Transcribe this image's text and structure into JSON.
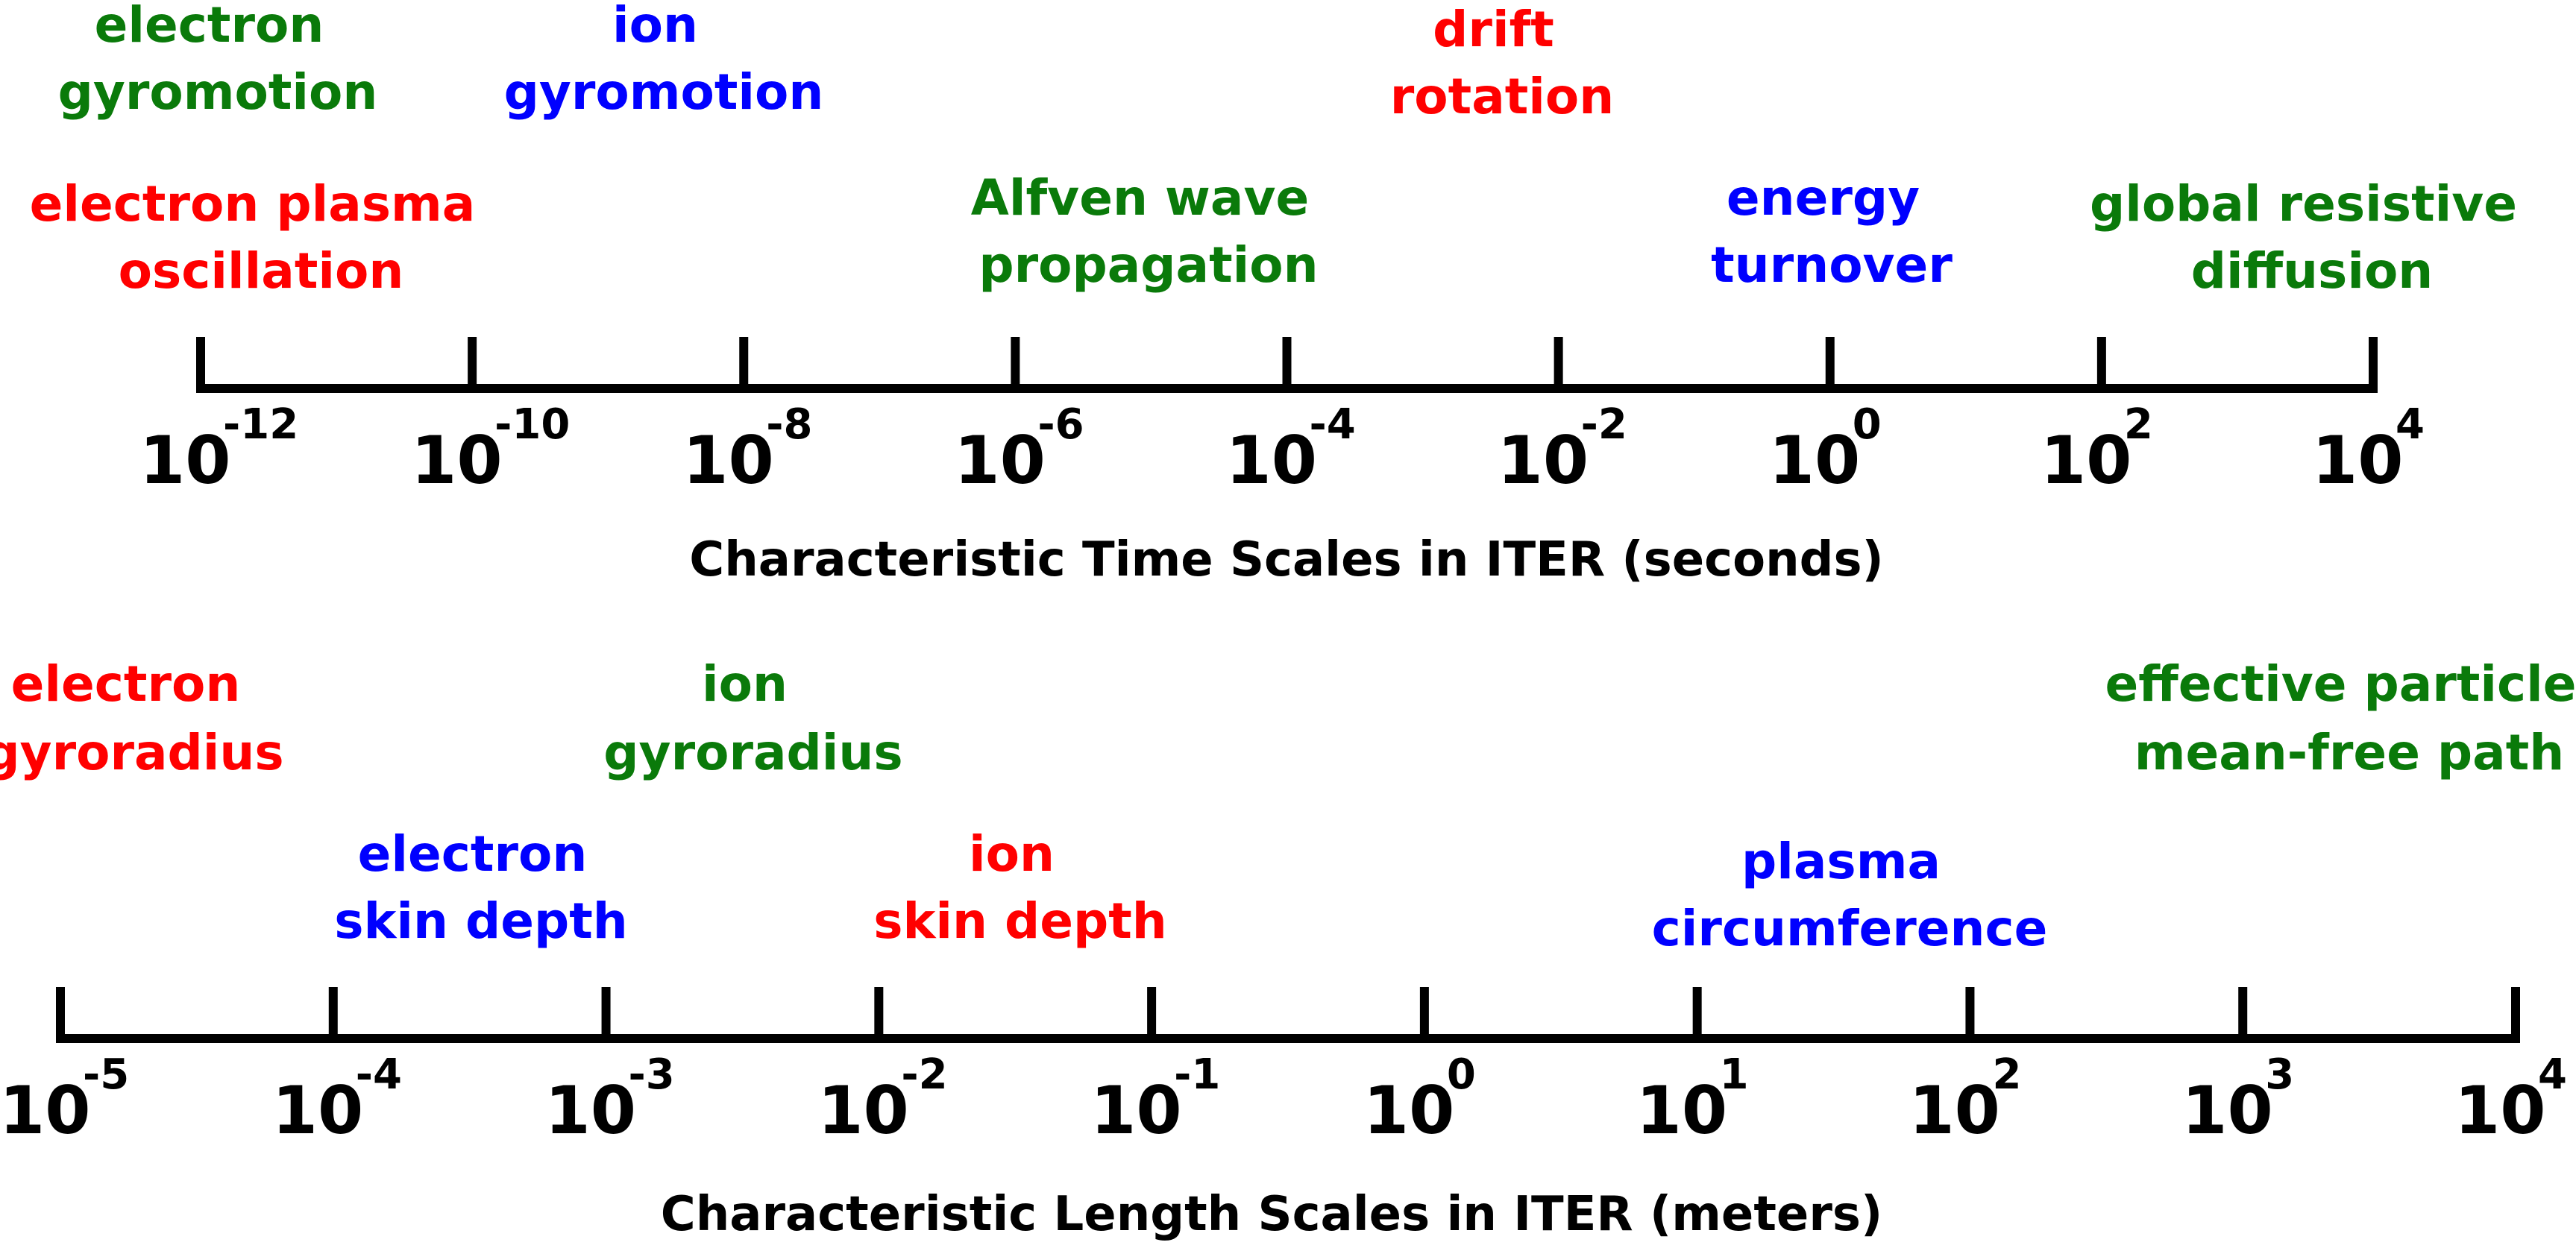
{
  "colors": {
    "red": "#ff0000",
    "green": "#0a7a0a",
    "blue": "#0000ff",
    "black": "#000000"
  },
  "time_scale": {
    "title": "Characteristic Time Scales in ITER (seconds)",
    "ticks": [
      {
        "base": "10",
        "exp": "-12"
      },
      {
        "base": "10",
        "exp": "-10"
      },
      {
        "base": "10",
        "exp": "-8"
      },
      {
        "base": "10",
        "exp": "-6"
      },
      {
        "base": "10",
        "exp": "-4"
      },
      {
        "base": "10",
        "exp": "-2"
      },
      {
        "base": "10",
        "exp": "0"
      },
      {
        "base": "10",
        "exp": "2"
      },
      {
        "base": "10",
        "exp": "4"
      }
    ],
    "labels": [
      {
        "lines": [
          "electron",
          "gyromotion"
        ],
        "color": "green"
      },
      {
        "lines": [
          "ion",
          "gyromotion"
        ],
        "color": "blue"
      },
      {
        "lines": [
          "drift",
          "rotation"
        ],
        "color": "red"
      },
      {
        "lines": [
          "electron plasma",
          "oscillation"
        ],
        "color": "red"
      },
      {
        "lines": [
          "Alfven wave",
          "propagation"
        ],
        "color": "green"
      },
      {
        "lines": [
          "energy",
          "turnover"
        ],
        "color": "blue"
      },
      {
        "lines": [
          "global resistive",
          "diffusion"
        ],
        "color": "green"
      }
    ]
  },
  "length_scale": {
    "title": "Characteristic Length Scales in ITER (meters)",
    "ticks": [
      {
        "base": "10",
        "exp": "-5"
      },
      {
        "base": "10",
        "exp": "-4"
      },
      {
        "base": "10",
        "exp": "-3"
      },
      {
        "base": "10",
        "exp": "-2"
      },
      {
        "base": "10",
        "exp": "-1"
      },
      {
        "base": "10",
        "exp": "0"
      },
      {
        "base": "10",
        "exp": "1"
      },
      {
        "base": "10",
        "exp": "2"
      },
      {
        "base": "10",
        "exp": "3"
      },
      {
        "base": "10",
        "exp": "4"
      }
    ],
    "labels": [
      {
        "lines": [
          "electron",
          "gyroradius"
        ],
        "color": "red"
      },
      {
        "lines": [
          "ion",
          "gyroradius"
        ],
        "color": "green"
      },
      {
        "lines": [
          "effective particle",
          "mean-free path"
        ],
        "color": "green"
      },
      {
        "lines": [
          "electron",
          "skin depth"
        ],
        "color": "blue"
      },
      {
        "lines": [
          "ion",
          "skin depth"
        ],
        "color": "red"
      },
      {
        "lines": [
          "plasma",
          "circumference"
        ],
        "color": "blue"
      }
    ]
  }
}
